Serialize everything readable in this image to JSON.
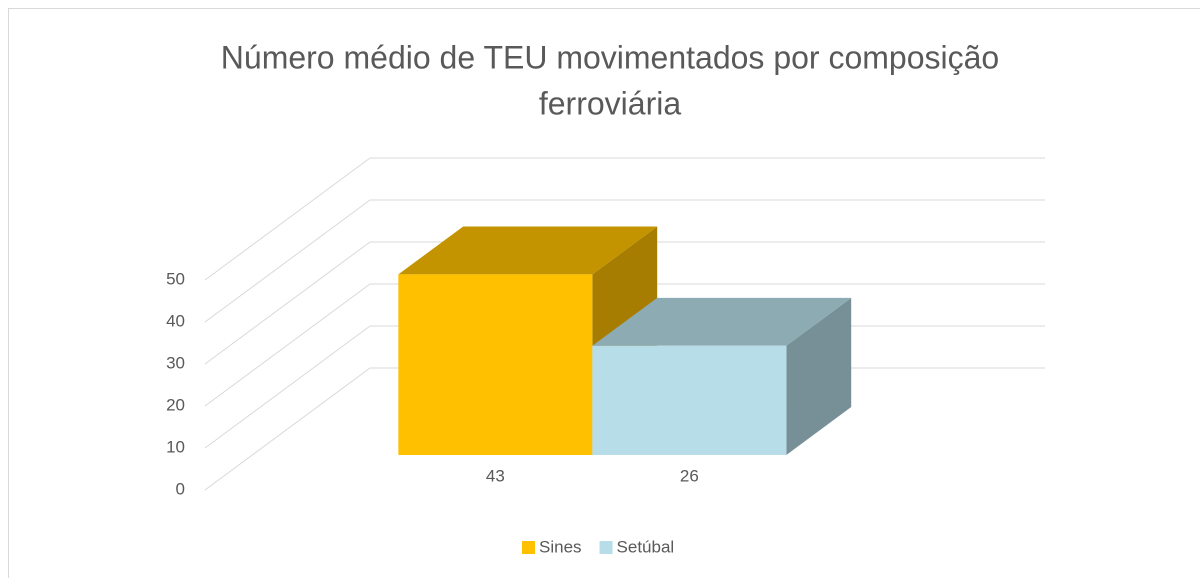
{
  "chart_data": {
    "type": "bar3d",
    "title_lines": [
      "Número médio de TEU movimentados por composição",
      "ferroviária"
    ],
    "categories": [
      null
    ],
    "series": [
      {
        "name": "Sines",
        "color": "#ffc000",
        "values": [
          43
        ]
      },
      {
        "name": "Setúbal",
        "color": "#b7dee8",
        "values": [
          26
        ]
      }
    ],
    "ylim": [
      0,
      50
    ],
    "yticks": [
      0,
      10,
      20,
      30,
      40,
      50
    ],
    "grid": true,
    "legend": "bottom"
  }
}
